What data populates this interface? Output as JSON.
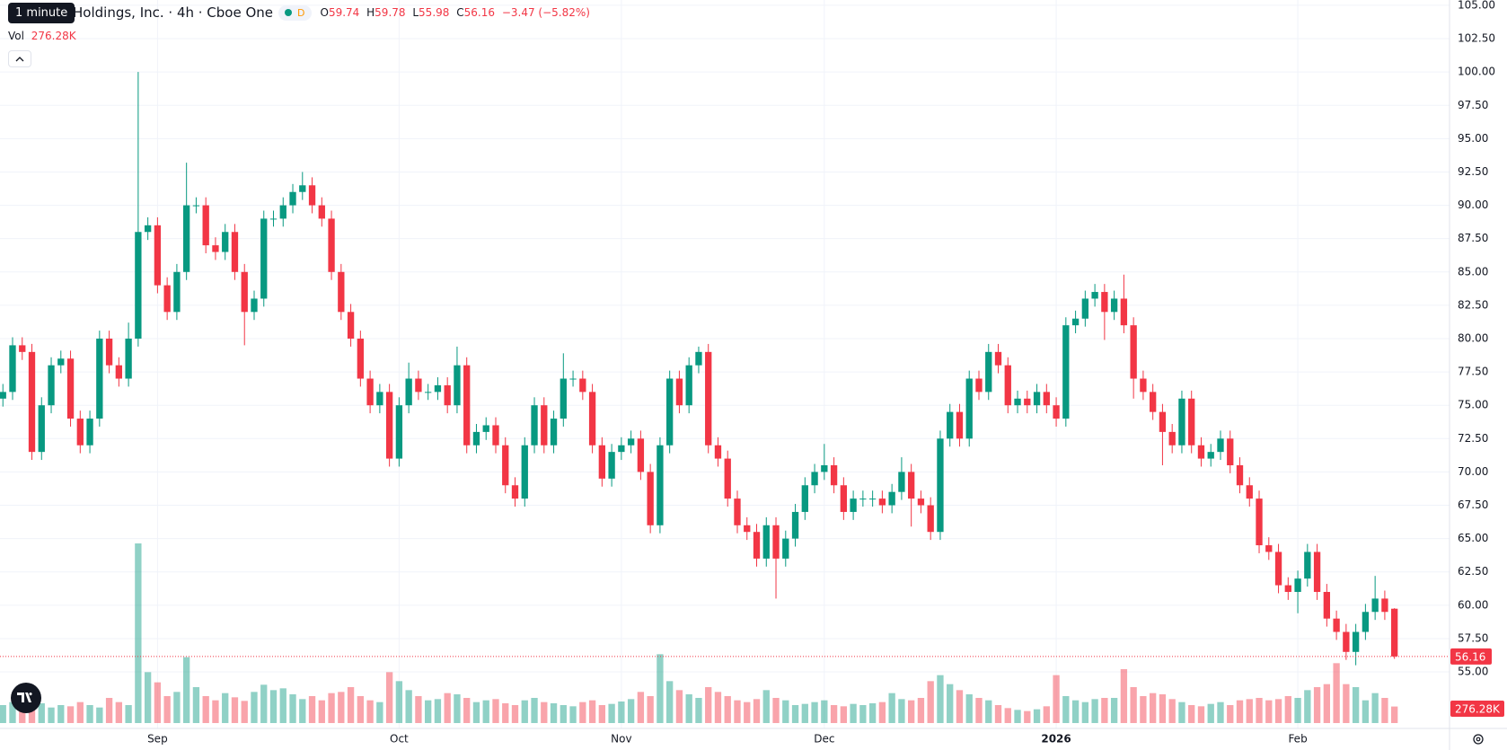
{
  "chart_data": {
    "type": "candlestick",
    "title": "Holdings, Inc. · 4h · Cboe One",
    "tooltip": "1 minute",
    "interval_badge": "D",
    "ohlc_labels": [
      "O",
      "H",
      "L",
      "C"
    ],
    "change_label": "−3.47 (−5.82%)",
    "volume_title": "Vol",
    "volume_last_label": "276.28K",
    "up_color": "#089981",
    "down_color": "#f23645",
    "open": [
      75.5,
      76,
      79.5,
      79,
      71.5,
      75,
      78,
      78.5,
      74,
      72,
      74,
      80,
      78,
      77,
      80,
      88,
      88.5,
      84,
      82,
      85,
      90,
      90,
      87,
      86.5,
      88,
      85,
      82,
      83,
      89,
      89,
      90,
      91,
      91.5,
      90,
      89,
      85,
      82,
      80,
      77,
      75,
      76,
      71,
      75,
      77,
      76,
      76,
      76.5,
      75,
      78,
      72,
      73,
      73.5,
      72,
      69,
      68,
      72,
      75,
      72,
      74,
      77,
      77,
      76,
      72,
      69.5,
      71.5,
      72,
      72.5,
      70,
      66,
      72,
      77,
      75,
      78,
      79,
      72,
      71,
      68,
      66,
      65.5,
      63.5,
      66,
      63.5,
      65,
      67,
      69,
      70,
      70.5,
      69,
      67,
      68,
      68,
      68,
      67.5,
      68.5,
      70,
      68,
      67.5,
      65.5,
      72.5,
      74.5,
      72.5,
      77,
      76,
      79,
      78,
      75,
      75.5,
      75,
      76,
      75,
      74,
      81,
      81.5,
      83,
      83.5,
      82,
      83,
      81,
      77,
      76,
      74.5,
      73,
      72,
      75.5,
      72,
      71,
      71.5,
      72.5,
      70.5,
      69,
      68,
      64.5,
      64,
      61.5,
      61,
      62,
      64,
      61,
      59,
      58,
      56.5,
      58,
      59.5,
      60.5,
      59.74
    ],
    "high": [
      76.6,
      80.1,
      80.1,
      79.6,
      75.6,
      78.6,
      79.1,
      79.1,
      74.6,
      74.6,
      80.6,
      80.6,
      78.6,
      81.2,
      100,
      89.1,
      89.1,
      84.6,
      85.6,
      93.2,
      90.6,
      90.6,
      87.6,
      88.6,
      88.6,
      85.6,
      83.6,
      89.6,
      89.6,
      90.6,
      91.6,
      92.5,
      92.1,
      90.6,
      89.6,
      85.6,
      82.6,
      80.6,
      77.6,
      76.6,
      76.6,
      75.6,
      78.2,
      77.6,
      76.6,
      77.1,
      77.1,
      79.4,
      78.6,
      73.6,
      74.1,
      74.1,
      72.6,
      69.6,
      72.6,
      75.6,
      75.6,
      74.6,
      78.9,
      77.6,
      77.6,
      76.6,
      72.6,
      72.1,
      72.6,
      73.1,
      73.1,
      70.6,
      72.6,
      77.6,
      77.6,
      78.6,
      79.4,
      79.6,
      72.6,
      71.6,
      68.6,
      66.6,
      66.1,
      66.6,
      66.6,
      65.6,
      67.6,
      69.6,
      70.6,
      72.1,
      71.1,
      69.6,
      68.6,
      68.6,
      68.6,
      68.6,
      69.1,
      71.1,
      70.6,
      68.6,
      68.1,
      73.1,
      75.1,
      75.1,
      77.6,
      77.6,
      79.6,
      79.6,
      78.6,
      76.1,
      76.1,
      76.6,
      76.6,
      75.6,
      81.6,
      82.1,
      83.6,
      84.1,
      84.1,
      83.6,
      84.8,
      81.6,
      77.6,
      76.6,
      75.1,
      73.6,
      76.1,
      76.1,
      72.6,
      72.1,
      73.1,
      73.1,
      71.1,
      69.6,
      68.6,
      65.1,
      64.6,
      62.1,
      62.6,
      64.6,
      64.6,
      61.6,
      59.6,
      58.6,
      58.6,
      60.1,
      62.2,
      61.1,
      59.78
    ],
    "low": [
      74.9,
      75.4,
      78.4,
      70.9,
      70.9,
      74.4,
      77.4,
      73.4,
      71.4,
      71.4,
      73.4,
      77.4,
      76.4,
      76.4,
      79.4,
      87.4,
      83.4,
      81.4,
      81.4,
      84.4,
      89.4,
      86.4,
      85.9,
      85.9,
      84.4,
      79.5,
      81.4,
      82.4,
      88.4,
      88.4,
      89.4,
      90.4,
      89.4,
      88.4,
      84.4,
      81.4,
      79.4,
      76.4,
      74.4,
      74.4,
      70.4,
      70.4,
      74.4,
      75.4,
      75.4,
      75.4,
      74.4,
      74.4,
      71.4,
      71.4,
      72.4,
      71.4,
      68.4,
      67.4,
      67.4,
      71.4,
      71.4,
      71.4,
      73.4,
      76.4,
      75.4,
      71.4,
      68.9,
      68.9,
      70.9,
      71.4,
      69.4,
      65.4,
      65.4,
      71.4,
      74.4,
      74.4,
      77.4,
      71.4,
      70.4,
      67.4,
      65.4,
      64.9,
      62.9,
      62.9,
      60.5,
      62.9,
      64.4,
      66.4,
      68.4,
      69.4,
      68.4,
      66.4,
      66.4,
      67.4,
      67.4,
      66.9,
      66.9,
      67.9,
      65.9,
      66.9,
      64.9,
      64.9,
      71.9,
      71.9,
      71.9,
      75.4,
      75.4,
      77.4,
      74.4,
      74.4,
      74.4,
      74.4,
      74.4,
      73.4,
      73.4,
      80.4,
      80.9,
      82.4,
      79.9,
      81.4,
      80.4,
      75.5,
      75.4,
      73.9,
      70.5,
      71.4,
      71.4,
      71.4,
      70.4,
      70.4,
      70.9,
      69.9,
      68.4,
      67.4,
      63.9,
      63.4,
      60.9,
      60.4,
      59.4,
      61.4,
      60.4,
      58.4,
      57.4,
      55.9,
      55.5,
      57.4,
      58.9,
      58.9,
      55.98
    ],
    "close": [
      76,
      79.5,
      79,
      71.5,
      75,
      78,
      78.5,
      74,
      72,
      74,
      80,
      78,
      77,
      80,
      88,
      88.5,
      84,
      82,
      85,
      90,
      90,
      87,
      86.5,
      88,
      85,
      82,
      83,
      89,
      89,
      90,
      91,
      91.5,
      90,
      89,
      85,
      82,
      80,
      77,
      75,
      76,
      71,
      75,
      77,
      76,
      76,
      76.5,
      75,
      78,
      72,
      73,
      73.5,
      72,
      69,
      68,
      72,
      75,
      72,
      74,
      77,
      77,
      76,
      72,
      69.5,
      71.5,
      72,
      72.5,
      70,
      66,
      72,
      77,
      75,
      78,
      79,
      72,
      71,
      68,
      66,
      65.5,
      63.5,
      66,
      63.5,
      65,
      67,
      69,
      70,
      70.5,
      69,
      67,
      68,
      68,
      68,
      67.5,
      68.5,
      70,
      68,
      67.5,
      65.5,
      72.5,
      74.5,
      72.5,
      77,
      76,
      79,
      78,
      75,
      75.5,
      75,
      76,
      75,
      74,
      81,
      81.5,
      83,
      83.5,
      82,
      83,
      81,
      77,
      76,
      74.5,
      73,
      72,
      75.5,
      72,
      71,
      71.5,
      72.5,
      70.5,
      69,
      68,
      64.5,
      64,
      61.5,
      61,
      62,
      64,
      61,
      59,
      58,
      56.5,
      58,
      59.5,
      60.5,
      59.5,
      56.16
    ],
    "volume": [
      300,
      350,
      420,
      380,
      330,
      260,
      300,
      280,
      350,
      300,
      260,
      420,
      350,
      300,
      3000,
      850,
      680,
      450,
      520,
      1100,
      600,
      450,
      380,
      500,
      430,
      370,
      520,
      640,
      550,
      580,
      480,
      400,
      450,
      380,
      500,
      520,
      600,
      450,
      380,
      350,
      850,
      700,
      550,
      450,
      380,
      400,
      500,
      480,
      420,
      350,
      380,
      400,
      330,
      300,
      380,
      420,
      350,
      330,
      300,
      280,
      350,
      380,
      300,
      320,
      360,
      400,
      520,
      450,
      1150,
      700,
      550,
      480,
      420,
      600,
      520,
      450,
      380,
      350,
      400,
      550,
      420,
      380,
      300,
      320,
      350,
      380,
      300,
      280,
      320,
      300,
      330,
      350,
      500,
      400,
      380,
      420,
      700,
      800,
      650,
      550,
      480,
      420,
      380,
      300,
      250,
      220,
      200,
      230,
      280,
      800,
      450,
      380,
      350,
      400,
      420,
      420,
      900,
      600,
      450,
      500,
      480,
      400,
      350,
      300,
      280,
      320,
      350,
      300,
      380,
      400,
      420,
      380,
      400,
      450,
      420,
      550,
      600,
      650,
      1000,
      650,
      600,
      380,
      500,
      420,
      276.28
    ],
    "xlim": [
      -0.3,
      149.7
    ],
    "xticks": [
      {
        "value": 16,
        "label": "Sep"
      },
      {
        "value": 41,
        "label": "Oct"
      },
      {
        "value": 64,
        "label": "Nov"
      },
      {
        "value": 85,
        "label": "Dec"
      },
      {
        "value": 109,
        "label": "2026"
      },
      {
        "value": 134,
        "label": "Feb"
      }
    ],
    "ylim": [
      51.5,
      105.4
    ],
    "yticks": [
      {
        "value": 55,
        "label": "55.00"
      },
      {
        "value": 57.5,
        "label": "57.50"
      },
      {
        "value": 60,
        "label": "60.00"
      },
      {
        "value": 62.5,
        "label": "62.50"
      },
      {
        "value": 65,
        "label": "65.00"
      },
      {
        "value": 67.5,
        "label": "67.50"
      },
      {
        "value": 70,
        "label": "70.00"
      },
      {
        "value": 72.5,
        "label": "72.50"
      },
      {
        "value": 75,
        "label": "75.00"
      },
      {
        "value": 77.5,
        "label": "77.50"
      },
      {
        "value": 80,
        "label": "80.00"
      },
      {
        "value": 82.5,
        "label": "82.50"
      },
      {
        "value": 85,
        "label": "85.00"
      },
      {
        "value": 87.5,
        "label": "87.50"
      },
      {
        "value": 90,
        "label": "90.00"
      },
      {
        "value": 92.5,
        "label": "92.50"
      },
      {
        "value": 95,
        "label": "95.00"
      },
      {
        "value": 97.5,
        "label": "97.50"
      },
      {
        "value": 100,
        "label": "100.00"
      },
      {
        "value": 102.5,
        "label": "102.50"
      },
      {
        "value": 105,
        "label": "105.00"
      }
    ],
    "grid": true
  }
}
